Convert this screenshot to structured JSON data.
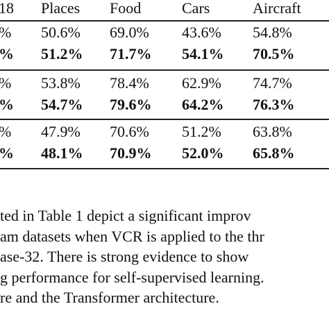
{
  "table": {
    "header": [
      "18",
      "Places",
      "Food",
      "Cars",
      "Aircraft"
    ],
    "rows": [
      [
        "%",
        "50.6%",
        "69.0%",
        "43.6%",
        "54.8%"
      ],
      [
        "%",
        "51.2%",
        "71.7%",
        "54.1%",
        "70.5%"
      ],
      [
        "%",
        "53.8%",
        "78.4%",
        "62.9%",
        "74.7%"
      ],
      [
        "%",
        "54.7%",
        "79.6%",
        "64.2%",
        "76.3%"
      ],
      [
        "%",
        "47.9%",
        "70.6%",
        "51.2%",
        "63.8%"
      ],
      [
        "%",
        "48.1%",
        "70.9%",
        "52.0%",
        "65.8%"
      ]
    ]
  },
  "paragraph": {
    "lines": [
      "ted in Table 1 depict a significant improv",
      "am datasets when VCR is applied to the thr",
      "ase-32. There is strong evidence to show",
      "g performance for self-supervised learning.",
      "re and the Transformer architecture."
    ]
  }
}
